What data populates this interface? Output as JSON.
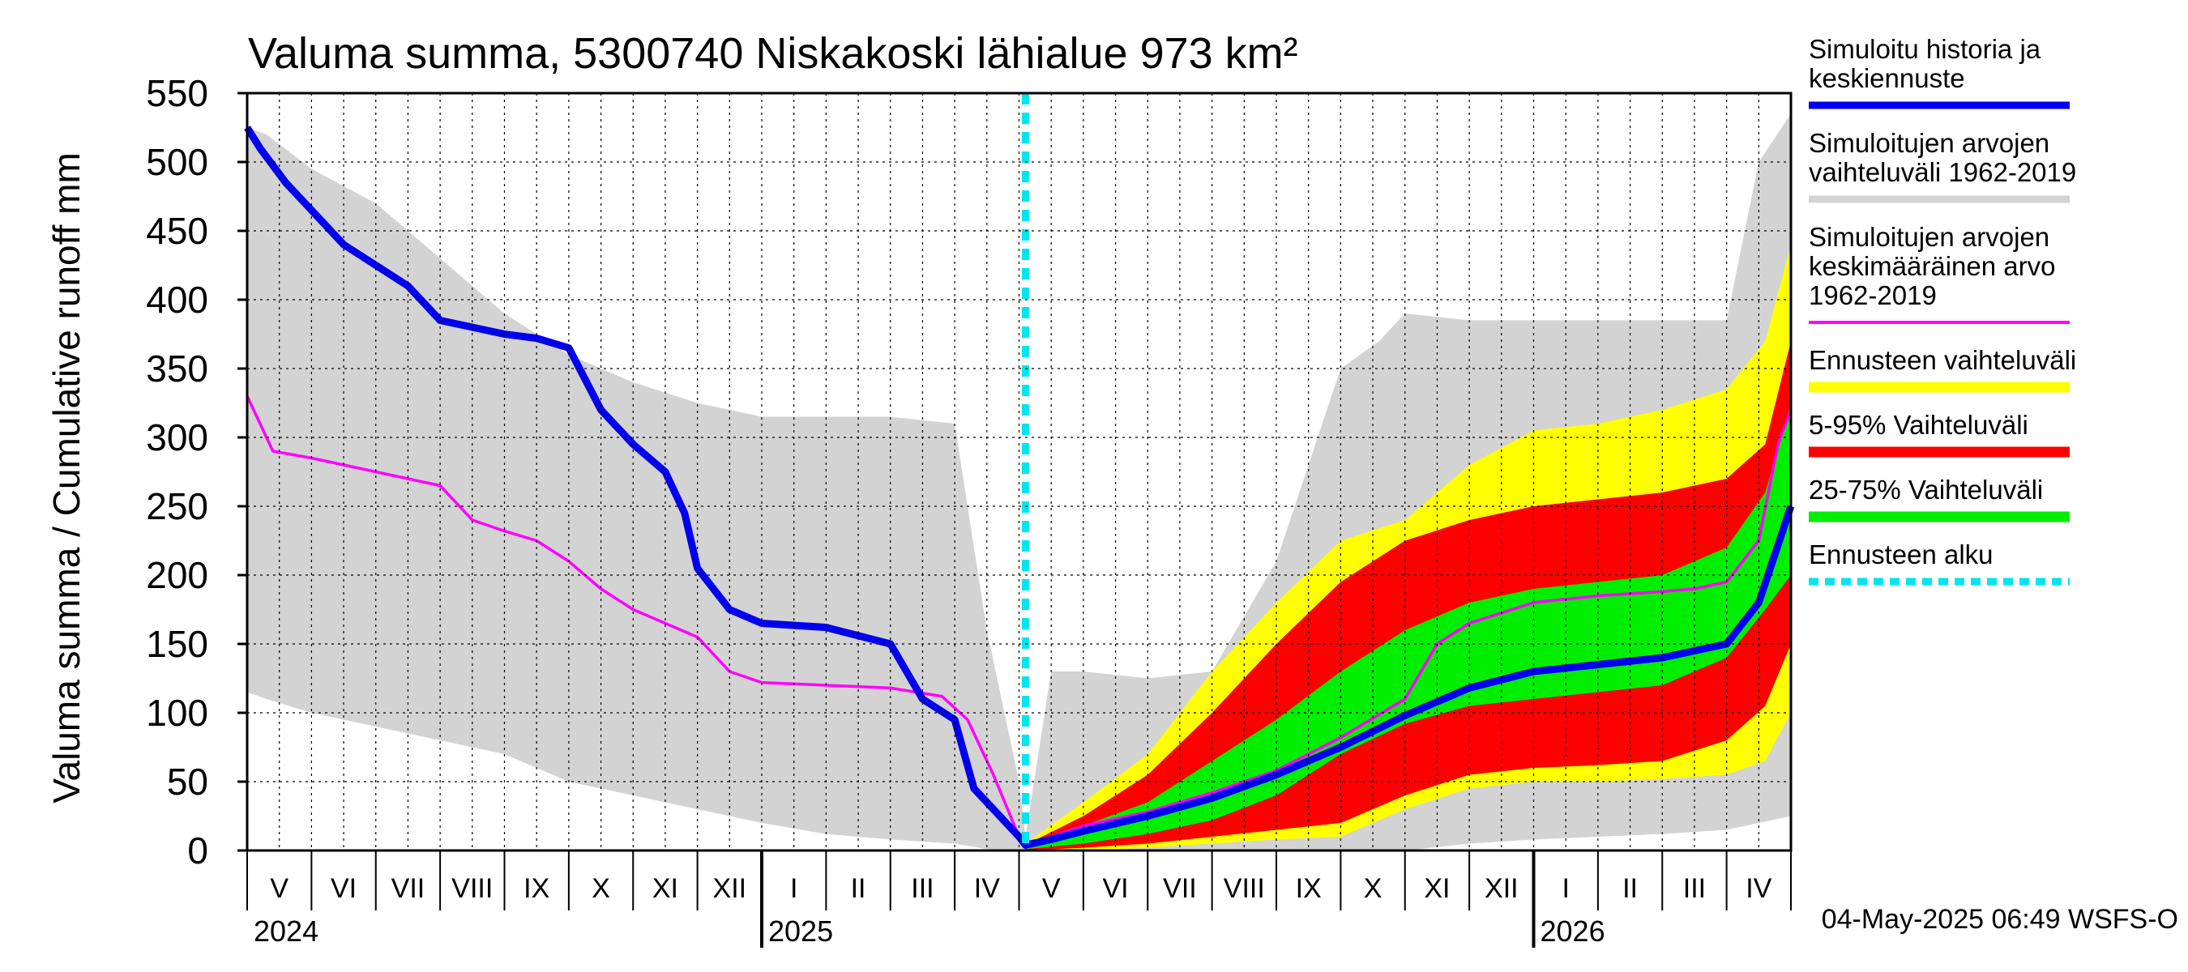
{
  "chart_data": {
    "type": "area",
    "title": "Valuma summa, 5300740 Niskakoski lähialue 973 km²",
    "ylabel": "Valuma summa / Cumulative runoff    mm",
    "ylim": [
      0,
      550
    ],
    "yticks": [
      "0",
      "50",
      "100",
      "150",
      "200",
      "250",
      "300",
      "350",
      "400",
      "450",
      "500",
      "550"
    ],
    "ytick_values": [
      0,
      50,
      100,
      150,
      200,
      250,
      300,
      350,
      400,
      450,
      500,
      550
    ],
    "x_unit": "months since 1 May 2024",
    "xlim": [
      0,
      24
    ],
    "forecast_start_x": 12.1,
    "months": [
      {
        "label": "V",
        "start": 0
      },
      {
        "label": "VI",
        "start": 1
      },
      {
        "label": "VII",
        "start": 2
      },
      {
        "label": "VIII",
        "start": 3
      },
      {
        "label": "IX",
        "start": 4
      },
      {
        "label": "X",
        "start": 5
      },
      {
        "label": "XI",
        "start": 6
      },
      {
        "label": "XII",
        "start": 7
      },
      {
        "label": "I",
        "start": 8
      },
      {
        "label": "II",
        "start": 9
      },
      {
        "label": "III",
        "start": 10
      },
      {
        "label": "IV",
        "start": 11
      },
      {
        "label": "V",
        "start": 12
      },
      {
        "label": "VI",
        "start": 13
      },
      {
        "label": "VII",
        "start": 14
      },
      {
        "label": "VIII",
        "start": 15
      },
      {
        "label": "IX",
        "start": 16
      },
      {
        "label": "X",
        "start": 17
      },
      {
        "label": "XI",
        "start": 18
      },
      {
        "label": "XII",
        "start": 19
      },
      {
        "label": "I",
        "start": 20
      },
      {
        "label": "II",
        "start": 21
      },
      {
        "label": "III",
        "start": 22
      },
      {
        "label": "IV",
        "start": 23
      }
    ],
    "years": [
      {
        "label": "2024",
        "x": 0
      },
      {
        "label": "2025",
        "x": 8
      },
      {
        "label": "2026",
        "x": 20
      }
    ],
    "bands": [
      {
        "name": "Simuloitujen arvojen vaihteluväli 1962-2019",
        "color": "#d3d3d3",
        "x": [
          0,
          0.3,
          1,
          2,
          3,
          4,
          5,
          6,
          7,
          8,
          9,
          10,
          11,
          11.5,
          12,
          12.1,
          12.5,
          13,
          14,
          15,
          16,
          17,
          17.6,
          18,
          19,
          20,
          21,
          22,
          23,
          23.5,
          24
        ],
        "upper": [
          525,
          520,
          495,
          470,
          430,
          390,
          360,
          340,
          325,
          315,
          315,
          315,
          310,
          160,
          50,
          10,
          130,
          130,
          125,
          130,
          210,
          350,
          370,
          390,
          385,
          385,
          385,
          385,
          385,
          500,
          535
        ],
        "lower": [
          115,
          110,
          100,
          90,
          80,
          70,
          50,
          40,
          30,
          20,
          12,
          8,
          5,
          1,
          0,
          0,
          0,
          0,
          0,
          0,
          0,
          0,
          0,
          0,
          5,
          8,
          10,
          12,
          15,
          20,
          25
        ]
      },
      {
        "name": "Ennusteen vaihteluväli",
        "color": "#ffff00",
        "x": [
          12.1,
          13,
          14,
          15,
          16,
          17,
          18,
          19,
          20,
          21,
          22,
          23,
          23.6,
          24
        ],
        "upper": [
          5,
          35,
          70,
          130,
          180,
          225,
          240,
          280,
          305,
          310,
          320,
          335,
          370,
          440
        ],
        "lower": [
          0,
          0,
          2,
          5,
          8,
          10,
          30,
          45,
          50,
          50,
          52,
          55,
          65,
          100
        ]
      },
      {
        "name": "5-95% Vaihteluväli",
        "color": "#ff0000",
        "x": [
          12.1,
          13,
          14,
          15,
          16,
          17,
          18,
          19,
          20,
          21,
          22,
          23,
          23.6,
          24
        ],
        "upper": [
          4,
          25,
          55,
          100,
          150,
          195,
          225,
          240,
          250,
          255,
          260,
          270,
          295,
          370
        ],
        "lower": [
          0,
          2,
          5,
          10,
          15,
          20,
          40,
          55,
          60,
          62,
          65,
          80,
          105,
          150
        ]
      },
      {
        "name": "25-75% Vaihteluväli",
        "color": "#00ee00",
        "x": [
          12.1,
          13,
          14,
          15,
          16,
          17,
          18,
          19,
          20,
          21,
          22,
          23,
          23.6,
          24
        ],
        "upper": [
          3,
          18,
          35,
          65,
          95,
          130,
          160,
          180,
          190,
          195,
          200,
          220,
          260,
          325
        ],
        "lower": [
          1,
          5,
          12,
          22,
          40,
          70,
          92,
          105,
          110,
          115,
          120,
          140,
          175,
          200
        ]
      }
    ],
    "series": [
      {
        "name": "Simuloitujen arvojen keskimääräinen arvo 1962-2019",
        "color": "#ff00ff",
        "x": [
          0,
          0.2,
          0.4,
          1,
          1.5,
          2,
          2.5,
          3,
          3.5,
          4,
          4.5,
          5,
          5.5,
          6,
          6.5,
          7,
          7.5,
          8,
          9,
          10,
          10.8,
          11.2,
          11.6,
          12,
          12.1,
          12.5,
          13,
          14,
          15,
          16,
          17,
          18,
          18.5,
          19,
          20,
          21,
          22,
          22.5,
          23,
          23.5,
          23.8,
          24
        ],
        "values": [
          330,
          310,
          290,
          285,
          280,
          275,
          270,
          265,
          240,
          232,
          225,
          210,
          190,
          175,
          165,
          155,
          130,
          122,
          120,
          118,
          112,
          95,
          55,
          10,
          2,
          10,
          18,
          28,
          42,
          58,
          82,
          110,
          150,
          165,
          180,
          185,
          188,
          190,
          195,
          225,
          295,
          320
        ]
      },
      {
        "name": "Simuloitu historia ja keskiennuste",
        "color": "#0000ee",
        "x": [
          0,
          0.2,
          0.6,
          1,
          1.5,
          2,
          2.5,
          2.8,
          3,
          3.5,
          4,
          4.5,
          5,
          5.5,
          6,
          6.5,
          6.8,
          7,
          7.5,
          8,
          9,
          10,
          10.5,
          11,
          11.3,
          11.6,
          12,
          12.1,
          12.5,
          13,
          14,
          15,
          16,
          17,
          18,
          19,
          20,
          21,
          22,
          22.5,
          23,
          23.5,
          24
        ],
        "values": [
          525,
          510,
          485,
          465,
          440,
          425,
          410,
          395,
          385,
          380,
          375,
          372,
          365,
          320,
          295,
          275,
          245,
          205,
          175,
          165,
          162,
          150,
          110,
          95,
          45,
          30,
          10,
          4,
          8,
          14,
          25,
          38,
          55,
          75,
          98,
          118,
          130,
          135,
          140,
          145,
          150,
          180,
          250
        ]
      }
    ],
    "legend": [
      {
        "label_lines": [
          "Simuloitu historia ja",
          "keskiennuste"
        ],
        "color": "#0000ee",
        "style": "line"
      },
      {
        "label_lines": [
          "Simuloitujen arvojen",
          "vaihteluväli 1962-2019"
        ],
        "color": "#d3d3d3",
        "style": "line"
      },
      {
        "label_lines": [
          "Simuloitujen arvojen",
          "keskimääräinen arvo",
          "   1962-2019"
        ],
        "color": "#ff00ff",
        "style": "thin"
      },
      {
        "label_lines": [
          "Ennusteen vaihteluväli"
        ],
        "color": "#ffff00",
        "style": "thick"
      },
      {
        "label_lines": [
          "5-95% Vaihteluväli"
        ],
        "color": "#ff0000",
        "style": "thick"
      },
      {
        "label_lines": [
          "25-75% Vaihteluväli"
        ],
        "color": "#00ee00",
        "style": "thick"
      },
      {
        "label_lines": [
          "Ennusteen alku"
        ],
        "color": "#00e5ee",
        "style": "dashed"
      }
    ],
    "timestamp": "04-May-2025 06:49 WSFS-O"
  }
}
